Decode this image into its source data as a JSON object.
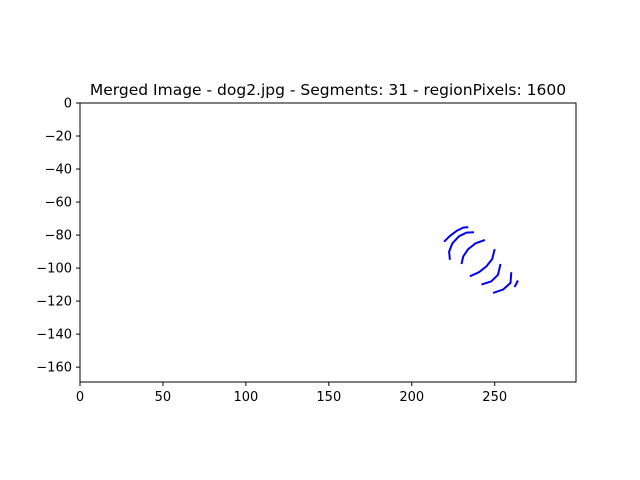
{
  "chart_data": {
    "type": "line",
    "title": "Merged Image - dog2.jpg - Segments: 31 - regionPixels: 1600",
    "xlabel": "",
    "ylabel": "",
    "xlim": [
      0,
      299
    ],
    "ylim": [
      -169,
      0
    ],
    "xticks": [
      0,
      50,
      100,
      150,
      200,
      250
    ],
    "yticks": [
      0,
      -20,
      -40,
      -60,
      -80,
      -100,
      -120,
      -140,
      -160
    ],
    "xtick_labels": [
      "0",
      "50",
      "100",
      "150",
      "200",
      "250"
    ],
    "ytick_labels": [
      "0",
      "−20",
      "−40",
      "−60",
      "−80",
      "−100",
      "−120",
      "−140",
      "−160"
    ],
    "grid": false,
    "legend": "none",
    "series_color": "#0000ee",
    "series": [
      {
        "points": [
          [
            219.5,
            -84
          ],
          [
            223,
            -80.5
          ],
          [
            227,
            -77.5
          ],
          [
            231,
            -75.5
          ],
          [
            234,
            -75.2
          ]
        ]
      },
      {
        "points": [
          [
            223,
            -95
          ],
          [
            222.5,
            -90
          ],
          [
            224.5,
            -85
          ],
          [
            228.5,
            -80.7
          ],
          [
            233,
            -78.5
          ],
          [
            237.5,
            -78.3
          ]
        ]
      },
      {
        "points": [
          [
            230,
            -97.5
          ],
          [
            231,
            -93
          ],
          [
            234,
            -88.5
          ],
          [
            238.5,
            -85
          ],
          [
            244,
            -83
          ]
        ]
      },
      {
        "points": [
          [
            235,
            -105
          ],
          [
            240.5,
            -102.5
          ],
          [
            245,
            -99
          ],
          [
            248.5,
            -94.5
          ],
          [
            250,
            -88.5
          ]
        ]
      },
      {
        "points": [
          [
            242,
            -110
          ],
          [
            248,
            -108
          ],
          [
            252,
            -104
          ],
          [
            253.5,
            -97.5
          ]
        ]
      },
      {
        "points": [
          [
            249,
            -115
          ],
          [
            255,
            -113
          ],
          [
            259.5,
            -109
          ],
          [
            260,
            -102.5
          ]
        ]
      },
      {
        "points": [
          [
            262,
            -111.5
          ],
          [
            264,
            -107.5
          ]
        ]
      }
    ]
  }
}
